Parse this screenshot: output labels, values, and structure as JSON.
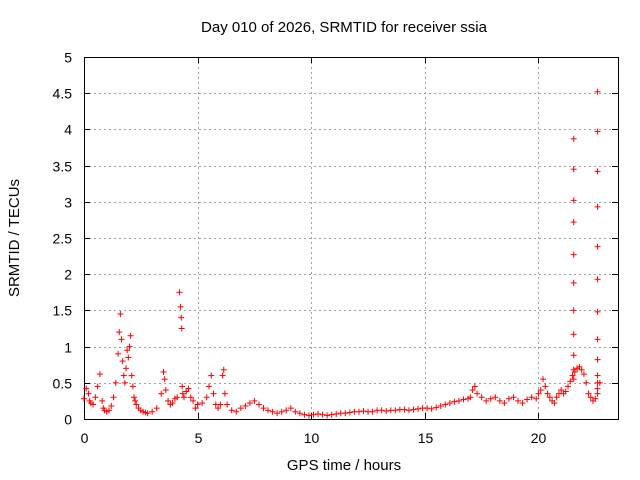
{
  "chart_data": {
    "type": "scatter",
    "title": "Day 010 of 2026, SRMTID for receiver ssia",
    "xlabel": "GPS time / hours",
    "ylabel": "SRMTID / TECUs",
    "xlim": [
      0,
      23.5
    ],
    "ylim": [
      0,
      5
    ],
    "xticks": [
      0,
      5,
      10,
      15,
      20
    ],
    "xtick_labels": [
      "0",
      "5",
      "10",
      "15",
      "20"
    ],
    "yticks": [
      0,
      0.5,
      1,
      1.5,
      2,
      2.5,
      3,
      3.5,
      4,
      4.5,
      5
    ],
    "ytick_labels": [
      "0",
      "0.5",
      "1",
      "1.5",
      "2",
      "2.5",
      "3",
      "3.5",
      "4",
      "4.5",
      "5"
    ],
    "grid": true,
    "marker": "+",
    "series": [
      {
        "name": "SRMTID",
        "color": "#ff0000",
        "x": [
          0.0,
          0.1,
          0.2,
          0.25,
          0.3,
          0.4,
          0.5,
          0.6,
          0.7,
          0.8,
          0.85,
          0.9,
          1.0,
          1.1,
          1.2,
          1.3,
          1.4,
          1.5,
          1.55,
          1.6,
          1.65,
          1.7,
          1.75,
          1.8,
          1.85,
          1.9,
          1.95,
          2.0,
          2.05,
          2.1,
          2.15,
          2.2,
          2.25,
          2.3,
          2.4,
          2.5,
          2.6,
          2.7,
          2.8,
          3.0,
          3.2,
          3.4,
          3.5,
          3.55,
          3.6,
          3.7,
          3.8,
          3.9,
          4.0,
          4.1,
          4.2,
          4.25,
          4.28,
          4.3,
          4.32,
          4.35,
          4.4,
          4.5,
          4.6,
          4.7,
          4.8,
          4.9,
          5.0,
          5.2,
          5.4,
          5.5,
          5.6,
          5.7,
          5.8,
          5.9,
          6.0,
          6.1,
          6.15,
          6.2,
          6.3,
          6.5,
          6.7,
          6.9,
          7.1,
          7.3,
          7.5,
          7.7,
          7.9,
          8.1,
          8.3,
          8.5,
          8.7,
          8.9,
          9.1,
          9.3,
          9.5,
          9.7,
          9.9,
          10.1,
          10.3,
          10.5,
          10.7,
          10.9,
          11.1,
          11.3,
          11.5,
          11.7,
          11.9,
          12.1,
          12.3,
          12.5,
          12.7,
          12.9,
          13.1,
          13.3,
          13.5,
          13.7,
          13.9,
          14.1,
          14.3,
          14.5,
          14.7,
          14.9,
          15.1,
          15.3,
          15.5,
          15.7,
          15.9,
          16.1,
          16.3,
          16.5,
          16.7,
          16.9,
          17.0,
          17.1,
          17.2,
          17.3,
          17.5,
          17.7,
          17.9,
          18.1,
          18.3,
          18.5,
          18.7,
          18.9,
          19.1,
          19.3,
          19.5,
          19.7,
          19.9,
          20.0,
          20.1,
          20.2,
          20.3,
          20.4,
          20.5,
          20.6,
          20.7,
          20.8,
          20.9,
          21.0,
          21.1,
          21.2,
          21.3,
          21.4,
          21.5,
          21.6,
          21.7,
          21.8,
          21.9,
          22.0,
          22.1,
          22.2,
          22.3,
          22.4,
          22.5,
          22.6,
          22.7,
          21.55,
          21.55,
          21.55,
          21.55,
          21.55,
          21.55,
          21.55,
          21.55,
          21.55,
          21.55,
          21.55,
          22.6,
          22.6,
          22.6,
          22.6,
          22.6,
          22.6,
          22.6,
          22.6,
          22.6,
          22.6,
          22.6,
          22.6
        ],
        "y": [
          0.28,
          0.42,
          0.35,
          0.25,
          0.22,
          0.2,
          0.3,
          0.45,
          0.62,
          0.25,
          0.15,
          0.12,
          0.1,
          0.12,
          0.18,
          0.3,
          0.5,
          0.9,
          1.2,
          1.45,
          1.1,
          0.8,
          0.6,
          0.5,
          0.7,
          0.95,
          0.85,
          1.0,
          1.15,
          0.6,
          0.45,
          0.3,
          0.25,
          0.2,
          0.15,
          0.12,
          0.1,
          0.09,
          0.08,
          0.1,
          0.15,
          0.35,
          0.65,
          0.55,
          0.4,
          0.25,
          0.2,
          0.22,
          0.28,
          0.3,
          1.75,
          1.55,
          1.4,
          1.25,
          0.45,
          0.35,
          0.3,
          0.38,
          0.42,
          0.3,
          0.25,
          0.15,
          0.2,
          0.22,
          0.3,
          0.45,
          0.6,
          0.35,
          0.2,
          0.15,
          0.2,
          0.6,
          0.68,
          0.35,
          0.2,
          0.12,
          0.1,
          0.15,
          0.18,
          0.22,
          0.25,
          0.2,
          0.15,
          0.12,
          0.1,
          0.08,
          0.1,
          0.12,
          0.15,
          0.1,
          0.08,
          0.06,
          0.05,
          0.06,
          0.07,
          0.06,
          0.05,
          0.06,
          0.07,
          0.08,
          0.08,
          0.09,
          0.1,
          0.1,
          0.11,
          0.1,
          0.1,
          0.12,
          0.12,
          0.11,
          0.12,
          0.12,
          0.13,
          0.13,
          0.12,
          0.13,
          0.14,
          0.15,
          0.15,
          0.14,
          0.16,
          0.18,
          0.2,
          0.22,
          0.24,
          0.25,
          0.27,
          0.28,
          0.3,
          0.4,
          0.45,
          0.35,
          0.3,
          0.25,
          0.28,
          0.3,
          0.25,
          0.22,
          0.28,
          0.3,
          0.25,
          0.22,
          0.27,
          0.3,
          0.28,
          0.35,
          0.4,
          0.55,
          0.45,
          0.35,
          0.3,
          0.25,
          0.22,
          0.3,
          0.35,
          0.4,
          0.35,
          0.38,
          0.45,
          0.52,
          0.6,
          0.65,
          0.7,
          0.72,
          0.68,
          0.62,
          0.5,
          0.35,
          0.3,
          0.25,
          0.28,
          0.35,
          0.5,
          3.87,
          3.45,
          3.02,
          2.72,
          2.27,
          1.88,
          1.5,
          1.17,
          0.88,
          0.68,
          0.55,
          4.52,
          3.97,
          3.42,
          2.93,
          2.38,
          1.93,
          1.48,
          1.1,
          0.82,
          0.6,
          0.5,
          0.42
        ]
      }
    ]
  }
}
